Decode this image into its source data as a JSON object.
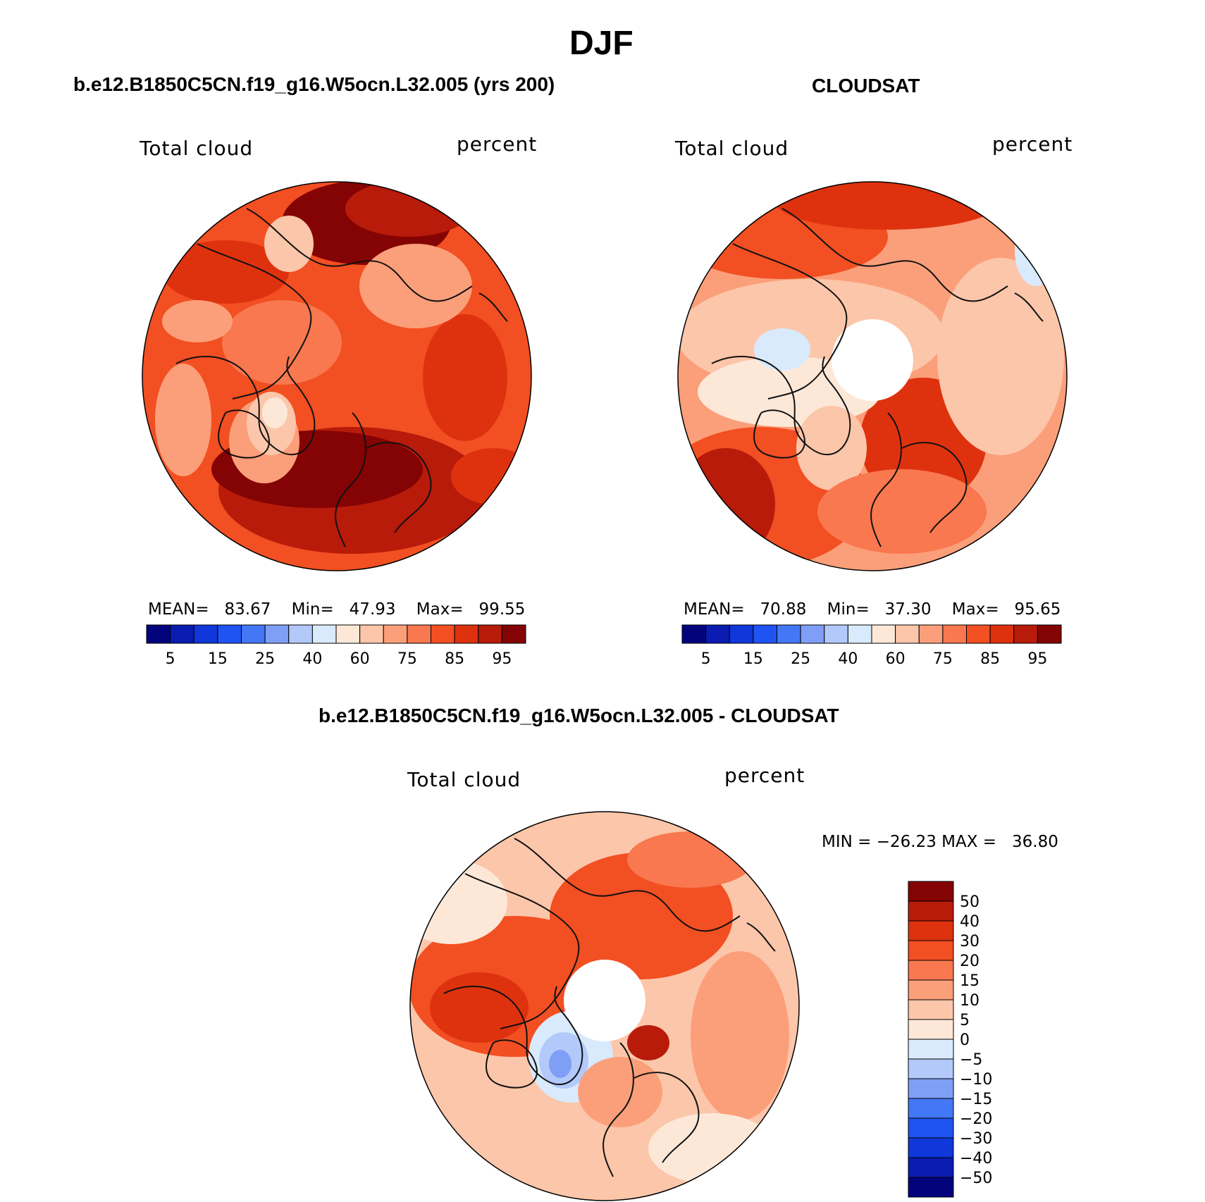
{
  "page_title": "DJF",
  "colors": {
    "bluescale": [
      "#03047c",
      "#0a1bb1",
      "#1037d9",
      "#1f53f2",
      "#4377f5",
      "#7f9ef6",
      "#b2c9fa",
      "#d9eafc"
    ],
    "redscale": [
      "#fde8d8",
      "#fcc6aa",
      "#fb9f7a",
      "#f9784f",
      "#f24f22",
      "#de320e",
      "#b81b0a",
      "#840304"
    ],
    "coast": "#111111"
  },
  "chart_data": [
    {
      "type": "heatmap",
      "id": "model",
      "title": "b.e12.B1850C5CN.f19_g16.W5ocn.L32.005 (yrs 200)",
      "left_label": "Total cloud",
      "right_label": "percent",
      "stats": {
        "mean_label": "MEAN=",
        "mean": "83.67",
        "min_label": "Min=",
        "min": "47.93",
        "max_label": "Max=",
        "max": "99.55"
      },
      "levels": [
        5,
        10,
        15,
        20,
        25,
        30,
        40,
        50,
        60,
        70,
        75,
        80,
        85,
        90,
        95
      ],
      "tick_labels": [
        "5",
        "15",
        "25",
        "40",
        "60",
        "75",
        "85",
        "95"
      ],
      "colorbar_orientation": "horizontal"
    },
    {
      "type": "heatmap",
      "id": "obs",
      "title": "CLOUDSAT",
      "left_label": "Total cloud",
      "right_label": "percent",
      "stats": {
        "mean_label": "MEAN=",
        "mean": "70.88",
        "min_label": "Min=",
        "min": "37.30",
        "max_label": "Max=",
        "max": "95.65"
      },
      "levels": [
        5,
        10,
        15,
        20,
        25,
        30,
        40,
        50,
        60,
        70,
        75,
        80,
        85,
        90,
        95
      ],
      "tick_labels": [
        "5",
        "15",
        "25",
        "40",
        "60",
        "75",
        "85",
        "95"
      ],
      "colorbar_orientation": "horizontal",
      "missing_pole": true
    },
    {
      "type": "heatmap",
      "id": "diff",
      "title": "b.e12.B1850C5CN.f19_g16.W5ocn.L32.005 - CLOUDSAT",
      "left_label": "Total cloud",
      "right_label": "percent",
      "stats_line": "MIN = −26.23 MAX =   36.80",
      "levels": [
        -50,
        -40,
        -30,
        -20,
        -15,
        -10,
        -5,
        0,
        5,
        10,
        15,
        20,
        30,
        40,
        50
      ],
      "tick_labels": [
        "50",
        "40",
        "30",
        "20",
        "15",
        "10",
        "5",
        "0",
        "−5",
        "−10",
        "−15",
        "−20",
        "−30",
        "−40",
        "−50"
      ],
      "colorbar_orientation": "vertical",
      "missing_pole": true
    }
  ]
}
